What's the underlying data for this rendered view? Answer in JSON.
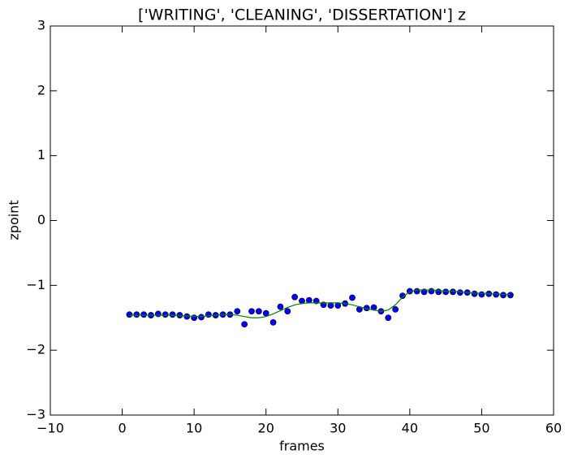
{
  "chart_data": {
    "type": "scatter",
    "title": "['WRITING', 'CLEANING', 'DISSERTATION'] z",
    "x_label": "frames",
    "y_label": "zpoint",
    "x": [
      1,
      2,
      3,
      4,
      5,
      6,
      7,
      8,
      9,
      10,
      11,
      12,
      13,
      14,
      15,
      16,
      17,
      18,
      19,
      20,
      21,
      22,
      23,
      24,
      25,
      26,
      27,
      28,
      29,
      30,
      31,
      32,
      33,
      34,
      35,
      36,
      37,
      38,
      39,
      40,
      41,
      42,
      43,
      44,
      45,
      46,
      47,
      48,
      49,
      50,
      51,
      52,
      53,
      54
    ],
    "series": [
      {
        "type": "scatter",
        "color": "#0000ff",
        "values": [
          -1.45,
          -1.45,
          -1.45,
          -1.46,
          -1.44,
          -1.45,
          -1.45,
          -1.46,
          -1.48,
          -1.5,
          -1.49,
          -1.45,
          -1.46,
          -1.45,
          -1.45,
          -1.4,
          -1.6,
          -1.4,
          -1.4,
          -1.43,
          -1.57,
          -1.33,
          -1.4,
          -1.18,
          -1.24,
          -1.23,
          -1.24,
          -1.3,
          -1.31,
          -1.31,
          -1.28,
          -1.19,
          -1.37,
          -1.35,
          -1.34,
          -1.4,
          -1.5,
          -1.37,
          -1.16,
          -1.09,
          -1.09,
          -1.1,
          -1.09,
          -1.1,
          -1.1,
          -1.1,
          -1.11,
          -1.11,
          -1.13,
          -1.14,
          -1.13,
          -1.14,
          -1.15,
          -1.15
        ]
      },
      {
        "type": "line",
        "color": "#008000",
        "values": [
          -1.46,
          -1.46,
          -1.46,
          -1.46,
          -1.46,
          -1.46,
          -1.46,
          -1.47,
          -1.47,
          -1.48,
          -1.48,
          -1.47,
          -1.46,
          -1.45,
          -1.45,
          -1.46,
          -1.48,
          -1.5,
          -1.5,
          -1.48,
          -1.44,
          -1.39,
          -1.34,
          -1.3,
          -1.28,
          -1.27,
          -1.27,
          -1.27,
          -1.27,
          -1.27,
          -1.28,
          -1.3,
          -1.33,
          -1.36,
          -1.38,
          -1.4,
          -1.38,
          -1.3,
          -1.18,
          -1.1,
          -1.07,
          -1.07,
          -1.07,
          -1.08,
          -1.09,
          -1.09,
          -1.1,
          -1.11,
          -1.12,
          -1.12,
          -1.13,
          -1.13,
          -1.14,
          -1.14
        ]
      }
    ],
    "xlim": [
      -10,
      60
    ],
    "xticks": [
      {
        "value": -10,
        "label": "−10"
      },
      0,
      10,
      20,
      30,
      40,
      50,
      60
    ],
    "ylim": [
      -3,
      3
    ],
    "yticks": [
      {
        "value": -3,
        "label": "−3"
      },
      {
        "value": -2,
        "label": "−2"
      },
      {
        "value": -1,
        "label": "−1"
      },
      0,
      1,
      2,
      3
    ]
  }
}
